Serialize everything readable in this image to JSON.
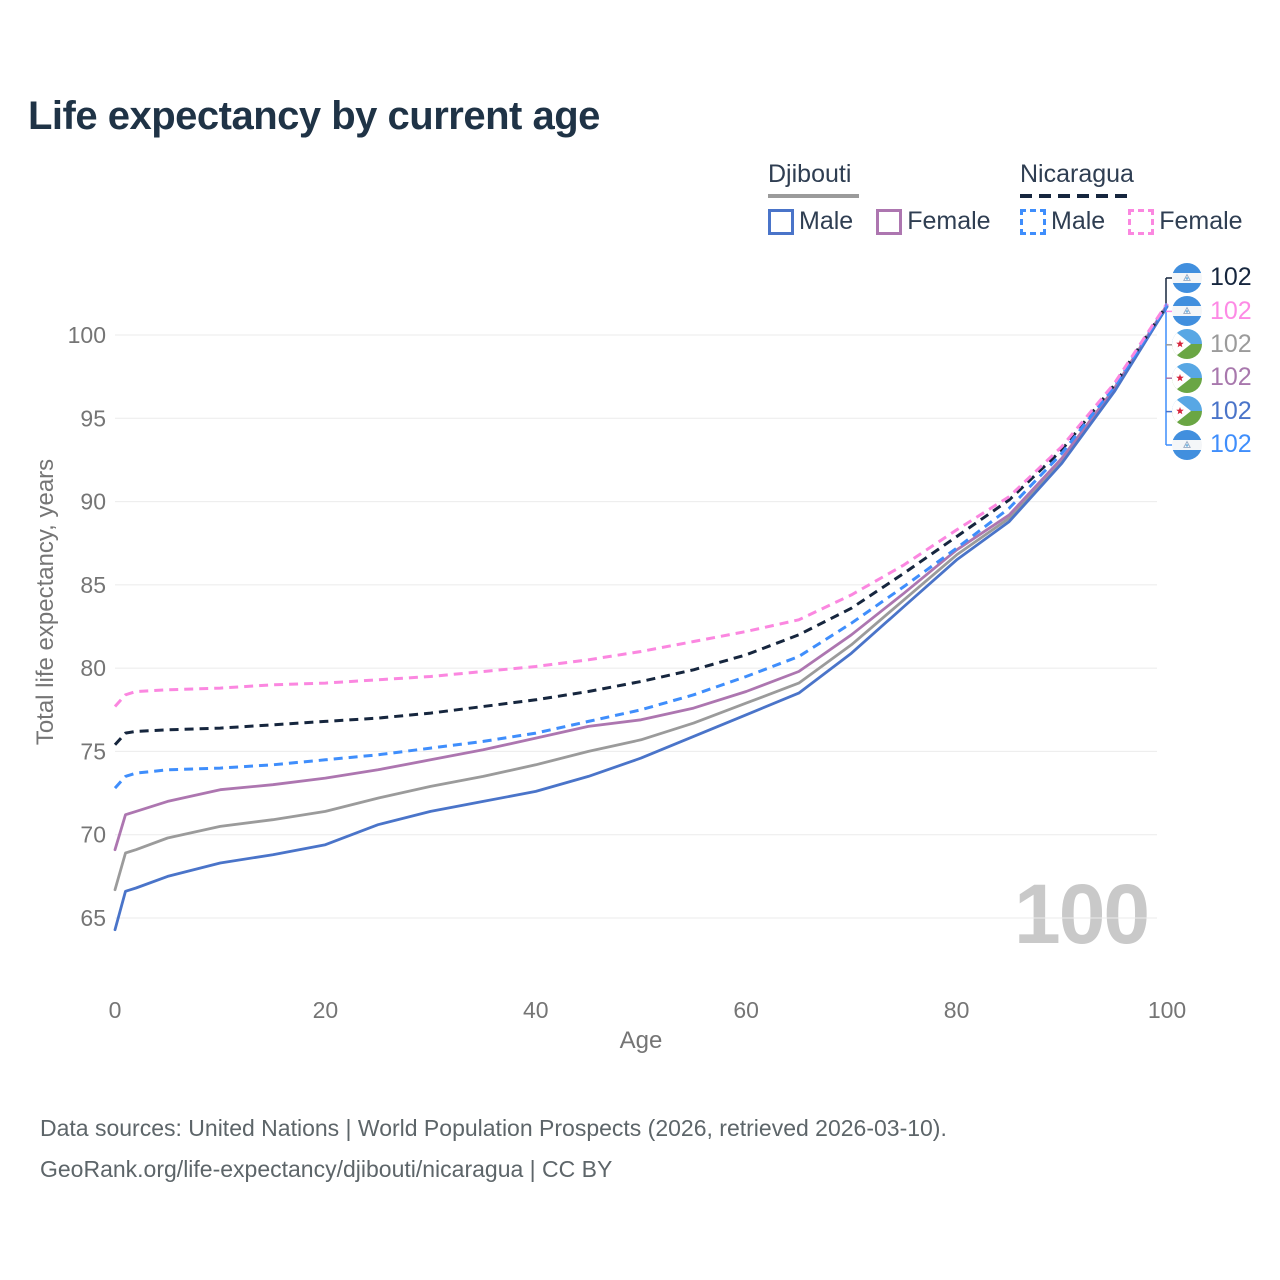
{
  "page": {
    "title": "Life expectancy by current age"
  },
  "legend": {
    "groups": [
      {
        "label": "Djibouti",
        "line_style": "solid",
        "underline_color": "#9b9b9b",
        "items": [
          {
            "label": "Male",
            "color": "#4a74c9",
            "dashed": false
          },
          {
            "label": "Female",
            "color": "#ad76b0",
            "dashed": false
          }
        ]
      },
      {
        "label": "Nicaragua",
        "line_style": "dashed",
        "underline_color": "#16263e",
        "items": [
          {
            "label": "Male",
            "color": "#3f8efc",
            "dashed": true
          },
          {
            "label": "Female",
            "color": "#fb87e0",
            "dashed": true
          }
        ]
      }
    ]
  },
  "chart_data": {
    "type": "line",
    "title": "Life expectancy by current age",
    "xlabel": "Age",
    "ylabel": "Total life expectancy, years",
    "xlim": [
      0,
      100
    ],
    "ylim": [
      63.5,
      103
    ],
    "xticks": [
      0,
      20,
      40,
      60,
      80,
      100
    ],
    "yticks": [
      65,
      70,
      75,
      80,
      85,
      90,
      95,
      100
    ],
    "grid": "horizontal",
    "legend_position": "top-right",
    "x": [
      0,
      1,
      2,
      5,
      10,
      15,
      20,
      25,
      30,
      35,
      40,
      45,
      50,
      55,
      60,
      65,
      70,
      75,
      80,
      85,
      90,
      95,
      100
    ],
    "series": [
      {
        "name": "Djibouti Both sexes",
        "color": "#9b9b9b",
        "dash": "solid",
        "values": [
          66.7,
          68.9,
          69.1,
          69.8,
          70.5,
          70.9,
          71.4,
          72.2,
          72.9,
          73.5,
          74.2,
          75.0,
          75.7,
          76.7,
          77.9,
          79.1,
          81.4,
          84.1,
          86.8,
          89.0,
          92.4,
          96.7,
          101.7
        ]
      },
      {
        "name": "Djibouti Female",
        "color": "#ad76b0",
        "dash": "solid",
        "values": [
          69.1,
          71.2,
          71.4,
          72.0,
          72.7,
          73.0,
          73.4,
          73.9,
          74.5,
          75.1,
          75.8,
          76.5,
          76.9,
          77.6,
          78.6,
          79.8,
          82.0,
          84.5,
          87.1,
          89.2,
          92.6,
          96.8,
          101.8
        ]
      },
      {
        "name": "Djibouti Male",
        "color": "#4a74c9",
        "dash": "solid",
        "values": [
          64.3,
          66.6,
          66.8,
          67.5,
          68.3,
          68.8,
          69.4,
          70.6,
          71.4,
          72.0,
          72.6,
          73.5,
          74.6,
          75.9,
          77.2,
          78.5,
          80.9,
          83.7,
          86.5,
          88.8,
          92.3,
          96.6,
          101.7
        ]
      },
      {
        "name": "Nicaragua Both sexes",
        "color": "#16263e",
        "dash": "dashed",
        "values": [
          75.4,
          76.1,
          76.2,
          76.3,
          76.4,
          76.6,
          76.8,
          77.0,
          77.3,
          77.7,
          78.1,
          78.6,
          79.2,
          79.9,
          80.8,
          82.0,
          83.6,
          85.7,
          87.9,
          90.1,
          93.1,
          97.0,
          101.8
        ]
      },
      {
        "name": "Nicaragua Male",
        "color": "#3f8efc",
        "dash": "dashed",
        "values": [
          72.8,
          73.5,
          73.7,
          73.9,
          74.0,
          74.2,
          74.5,
          74.8,
          75.2,
          75.6,
          76.1,
          76.8,
          77.5,
          78.4,
          79.5,
          80.7,
          82.7,
          84.9,
          87.2,
          89.6,
          92.9,
          96.9,
          101.8
        ]
      },
      {
        "name": "Nicaragua Female",
        "color": "#fb87e0",
        "dash": "dashed",
        "values": [
          77.7,
          78.4,
          78.6,
          78.7,
          78.8,
          79.0,
          79.1,
          79.3,
          79.5,
          79.8,
          80.1,
          80.5,
          81.0,
          81.6,
          82.2,
          82.9,
          84.4,
          86.2,
          88.3,
          90.3,
          93.3,
          97.1,
          101.9
        ]
      }
    ],
    "end_labels": [
      {
        "series": "Nicaragua Both sexes",
        "flag": "nicaragua",
        "value": "102",
        "color": "#16263e"
      },
      {
        "series": "Nicaragua Female",
        "flag": "nicaragua",
        "value": "102",
        "color": "#fd8ae5"
      },
      {
        "series": "Djibouti Both sexes",
        "flag": "djibouti",
        "value": "102",
        "color": "#9b9b9b"
      },
      {
        "series": "Djibouti Female",
        "flag": "djibouti",
        "value": "102",
        "color": "#a878ad"
      },
      {
        "series": "Djibouti Male",
        "flag": "djibouti",
        "value": "102",
        "color": "#4a74c9"
      },
      {
        "series": "Nicaragua Male",
        "flag": "nicaragua",
        "value": "102",
        "color": "#3f8efc"
      }
    ],
    "hover_age_watermark": "100"
  },
  "footer": {
    "line1": "Data sources: United Nations | World Population Prospects (2026, retrieved 2026-03-10).",
    "line2": "GeoRank.org/life-expectancy/djibouti/nicaragua | CC BY"
  }
}
